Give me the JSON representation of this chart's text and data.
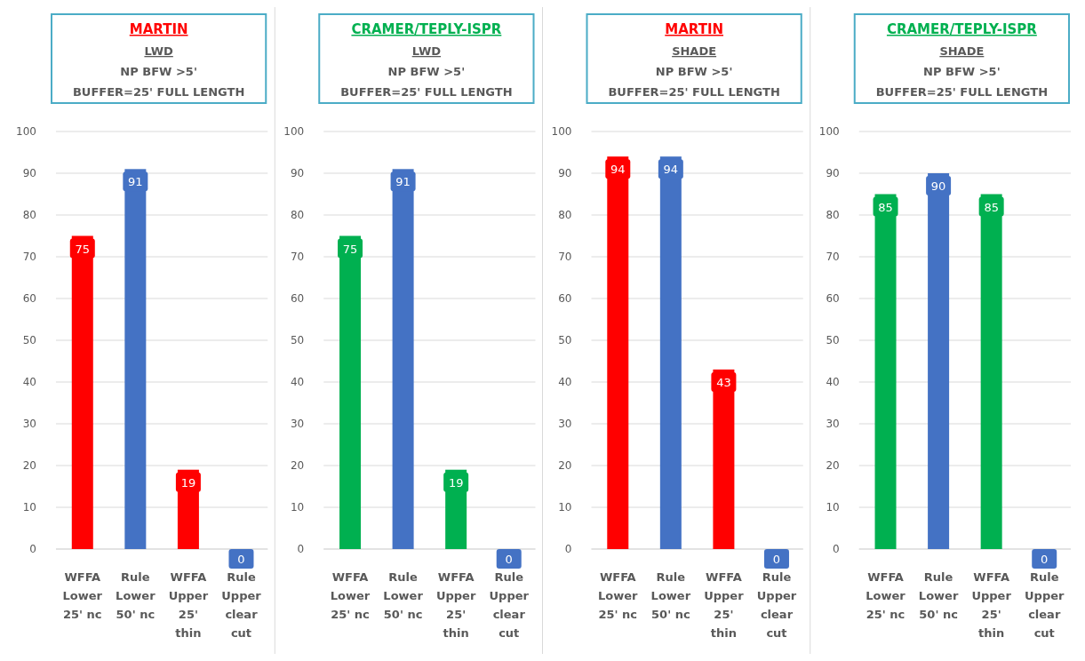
{
  "chart_data": [
    {
      "type": "bar",
      "title": "MARTIN",
      "subtitle": "LWD\nNP BFW >5'\nBUFFER=25' FULL LENGTH",
      "categories": [
        "WFFA Lower 25' nc",
        "Rule Lower 50' nc",
        "WFFA Upper 25' thin",
        "Rule Upper clear cut"
      ],
      "values": [
        75,
        91,
        19,
        0
      ],
      "colors": [
        "#ff0000",
        "#4472c4",
        "#ff0000",
        "#4472c4"
      ],
      "ylim": [
        0,
        100
      ],
      "yticks": [
        0,
        10,
        20,
        30,
        40,
        50,
        60,
        70,
        80,
        90,
        100
      ],
      "grid": "y",
      "data_labels": true
    },
    {
      "type": "bar",
      "title": "CRAMER/TEPLY-ISPR",
      "subtitle": "LWD\nNP BFW >5'\nBUFFER=25' FULL LENGTH",
      "categories": [
        "WFFA Lower 25' nc",
        "Rule Lower 50' nc",
        "WFFA Upper 25' thin",
        "Rule Upper clear cut"
      ],
      "values": [
        75,
        91,
        19,
        0
      ],
      "colors": [
        "#00b050",
        "#4472c4",
        "#00b050",
        "#4472c4"
      ],
      "ylim": [
        0,
        100
      ],
      "yticks": [
        0,
        10,
        20,
        30,
        40,
        50,
        60,
        70,
        80,
        90,
        100
      ],
      "grid": "y",
      "data_labels": true
    },
    {
      "type": "bar",
      "title": "MARTIN",
      "subtitle": "SHADE\nNP BFW >5'\nBUFFER=25' FULL LENGTH",
      "categories": [
        "WFFA Lower 25' nc",
        "Rule Lower 50' nc",
        "WFFA Upper 25' thin",
        "Rule Upper clear cut"
      ],
      "values": [
        94,
        94,
        43,
        0
      ],
      "colors": [
        "#ff0000",
        "#4472c4",
        "#ff0000",
        "#4472c4"
      ],
      "ylim": [
        0,
        100
      ],
      "yticks": [
        0,
        10,
        20,
        30,
        40,
        50,
        60,
        70,
        80,
        90,
        100
      ],
      "grid": "y",
      "data_labels": true
    },
    {
      "type": "bar",
      "title": "CRAMER/TEPLY-ISPR",
      "subtitle": "SHADE\nNP BFW >5'\nBUFFER=25' FULL LENGTH",
      "categories": [
        "WFFA Lower 25' nc",
        "Rule Lower 50' nc",
        "WFFA Upper 25' thin",
        "Rule Upper clear cut"
      ],
      "values": [
        85,
        90,
        85,
        0
      ],
      "colors": [
        "#00b050",
        "#4472c4",
        "#00b050",
        "#4472c4"
      ],
      "ylim": [
        0,
        100
      ],
      "yticks": [
        0,
        10,
        20,
        30,
        40,
        50,
        60,
        70,
        80,
        90,
        100
      ],
      "grid": "y",
      "data_labels": true
    }
  ]
}
